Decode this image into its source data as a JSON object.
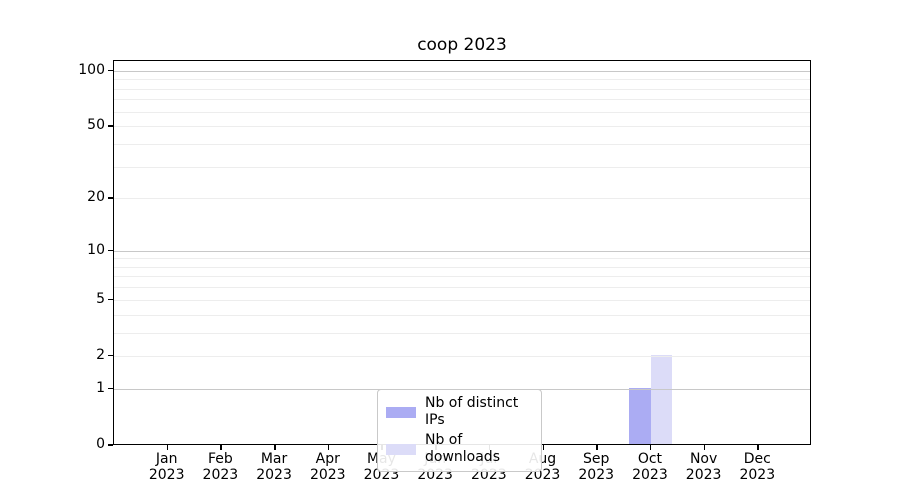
{
  "chart_data": {
    "type": "bar",
    "title": "coop 2023",
    "categories": [
      "Jan 2023",
      "Feb 2023",
      "Mar 2023",
      "Apr 2023",
      "May 2023",
      "Jun 2023",
      "Jul 2023",
      "Aug 2023",
      "Sep 2023",
      "Oct 2023",
      "Nov 2023",
      "Dec 2023"
    ],
    "series": [
      {
        "name": "Nb of distinct IPs",
        "color": "#abacf3",
        "values": [
          0,
          0,
          0,
          0,
          0,
          0,
          0,
          0,
          0,
          1,
          0,
          0
        ]
      },
      {
        "name": "Nb of downloads",
        "color": "#dcdcf8",
        "values": [
          0,
          0,
          0,
          0,
          0,
          0,
          0,
          0,
          0,
          2,
          0,
          0
        ]
      }
    ],
    "xlabel": "",
    "ylabel": "",
    "y_axis": {
      "scale": "log1p",
      "tick_labels": [
        "0",
        "1",
        "2",
        "5",
        "10",
        "20",
        "50",
        "100"
      ],
      "tick_values": [
        0,
        1,
        2,
        5,
        10,
        20,
        50,
        100
      ],
      "major_grid_values": [
        1,
        10,
        100
      ],
      "minor_grid_values": [
        2,
        3,
        4,
        5,
        6,
        7,
        8,
        9,
        20,
        30,
        40,
        50,
        60,
        70,
        80,
        90
      ],
      "ylim": [
        0,
        113
      ]
    },
    "legend": {
      "position": "lower center inside",
      "entries": [
        "Nb of distinct IPs",
        "Nb of downloads"
      ]
    },
    "grid": "horizontal"
  },
  "colors": {
    "background": "#ffffff",
    "bar_distinct_ips": "#abacf3",
    "bar_downloads": "#dcdcf8",
    "grid_major": "#c8c8c8",
    "grid_minor": "#ededed",
    "axis": "#000000",
    "text": "#000000",
    "legend_border": "#c9c9c9"
  }
}
